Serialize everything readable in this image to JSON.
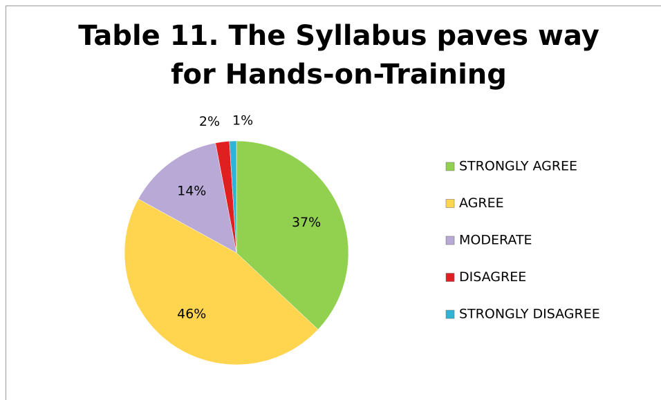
{
  "chart_data": {
    "type": "pie",
    "title": "Table 11. The Syllabus paves way for Hands-on-Training",
    "categories": [
      "STRONGLY AGREE",
      "AGREE",
      "MODERATE",
      "DISAGREE",
      "STRONGLY DISAGREE"
    ],
    "values": [
      37,
      46,
      14,
      2,
      1
    ],
    "value_labels": [
      "37%",
      "46%",
      "14%",
      "2%",
      "1%"
    ],
    "colors": [
      "#92d050",
      "#ffd54f",
      "#b8a9d6",
      "#e02020",
      "#31b4d4"
    ],
    "legend": "right"
  }
}
